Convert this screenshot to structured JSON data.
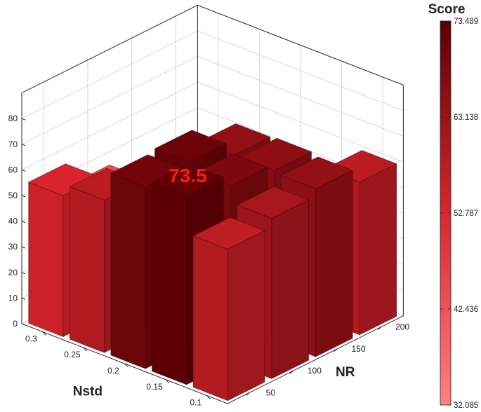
{
  "chart_data": {
    "type": "bar3d",
    "x_axis": {
      "label": "Nstd",
      "ticks": [
        "0.1",
        "0.15",
        "0.2",
        "0.25",
        "0.3"
      ]
    },
    "y_axis": {
      "label": "NR",
      "ticks": [
        "50",
        "100",
        "150",
        "200"
      ]
    },
    "z_axis": {
      "label": "",
      "ticks": [
        "0",
        "10",
        "20",
        "30",
        "40",
        "50",
        "60",
        "70",
        "80"
      ],
      "zlim": [
        0,
        90
      ]
    },
    "colorbar": {
      "title": "Score",
      "ticks": [
        "73.489",
        "63.138",
        "52.787",
        "42.436",
        "32.085"
      ],
      "min": 32.085,
      "max": 73.489,
      "low_color": "#ff8085",
      "high_color": "#5c0005"
    },
    "annotation": {
      "text": "73.5",
      "nstd": "0.15",
      "nr": "50"
    },
    "grid": true,
    "values": [
      {
        "nstd": "0.1",
        "nr": "200",
        "score": 59.5
      },
      {
        "nstd": "0.15",
        "nr": "200",
        "score": 38.5
      },
      {
        "nstd": "0.2",
        "nr": "200",
        "score": 32.0
      },
      {
        "nstd": "0.25",
        "nr": "200",
        "score": 33.5
      },
      {
        "nstd": "0.3",
        "nr": "200",
        "score": 32.2
      },
      {
        "nstd": "0.1",
        "nr": "150",
        "score": 65.5
      },
      {
        "nstd": "0.15",
        "nr": "150",
        "score": 66.5
      },
      {
        "nstd": "0.2",
        "nr": "150",
        "score": 66.0
      },
      {
        "nstd": "0.25",
        "nr": "150",
        "score": 42.0
      },
      {
        "nstd": "0.3",
        "nr": "150",
        "score": 37.0
      },
      {
        "nstd": "0.1",
        "nr": "100",
        "score": 62.5
      },
      {
        "nstd": "0.15",
        "nr": "100",
        "score": 69.0
      },
      {
        "nstd": "0.2",
        "nr": "100",
        "score": 72.0
      },
      {
        "nstd": "0.25",
        "nr": "100",
        "score": 52.0
      },
      {
        "nstd": "0.3",
        "nr": "100",
        "score": 46.0
      },
      {
        "nstd": "0.1",
        "nr": "50",
        "score": 59.0
      },
      {
        "nstd": "0.15",
        "nr": "50",
        "score": 73.5
      },
      {
        "nstd": "0.2",
        "nr": "50",
        "score": 71.0
      },
      {
        "nstd": "0.25",
        "nr": "50",
        "score": 59.5
      },
      {
        "nstd": "0.3",
        "nr": "50",
        "score": 55.0
      }
    ]
  }
}
